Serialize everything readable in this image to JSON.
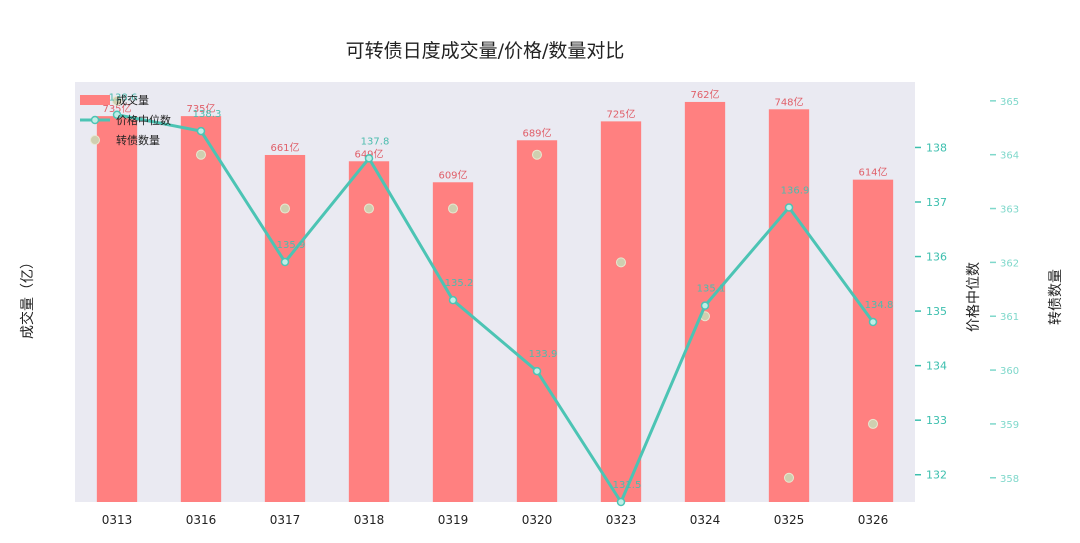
{
  "chart_data": {
    "type": "bar",
    "title": "可转债日度成交量/价格/数量对比",
    "categories": [
      "0313",
      "0316",
      "0317",
      "0318",
      "0319",
      "0320",
      "0323",
      "0324",
      "0325",
      "0326"
    ],
    "series": [
      {
        "name": "成交量",
        "type": "bar",
        "axis": "left",
        "values": [
          735,
          735,
          661,
          649,
          609,
          689,
          725,
          762,
          748,
          614
        ],
        "labels": [
          "735亿",
          "735亿",
          "661亿",
          "649亿",
          "609亿",
          "689亿",
          "725亿",
          "762亿",
          "748亿",
          "614亿"
        ],
        "color": "#ff8080"
      },
      {
        "name": "价格中位数",
        "type": "line",
        "axis": "right",
        "values": [
          138.6,
          138.3,
          135.9,
          137.8,
          135.2,
          133.9,
          131.5,
          135.1,
          136.9,
          134.8
        ],
        "labels": [
          "138.6",
          "138.3",
          "135.9",
          "137.8",
          "135.2",
          "133.9",
          "131.5",
          "135.1",
          "136.9",
          "134.8"
        ],
        "color": "#4cc4b4"
      },
      {
        "name": "转债数量",
        "type": "scatter",
        "axis": "right2",
        "values": [
          365,
          364,
          363,
          363,
          363,
          364,
          362,
          361,
          358,
          359
        ],
        "color": "#cfcfb0"
      }
    ],
    "xlabel": "",
    "ylabel": "成交量（亿）",
    "y2label": "价格中位数",
    "y3label": "转债数量",
    "ylim": [
      0,
      800
    ],
    "y2lim": [
      131.5,
      139.2
    ],
    "y2ticks": [
      132,
      133,
      134,
      135,
      136,
      137,
      138
    ],
    "y3lim": [
      357.55,
      365.35
    ],
    "y3ticks": [
      358,
      359,
      360,
      361,
      362,
      363,
      364,
      365
    ],
    "grid": false,
    "legend_position": "top-left",
    "background": "#eaeaf2"
  }
}
